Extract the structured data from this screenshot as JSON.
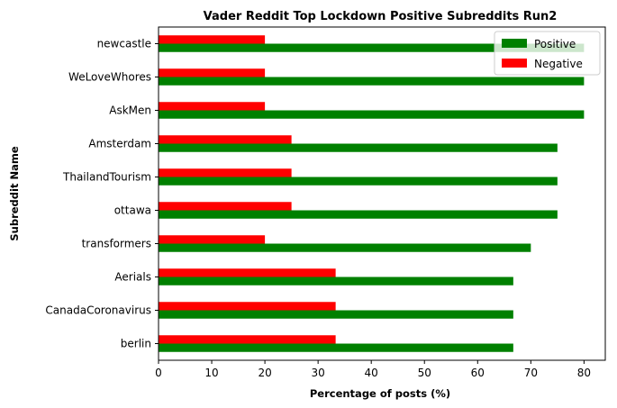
{
  "chart_data": {
    "type": "bar",
    "orientation": "horizontal",
    "title": "Vader Reddit Top Lockdown Positive Subreddits Run2",
    "xlabel": "Percentage of posts (%)",
    "ylabel": "Subreddit Name",
    "xlim": [
      0,
      84
    ],
    "xticks": [
      0,
      10,
      20,
      30,
      40,
      50,
      60,
      70,
      80
    ],
    "grid": false,
    "legend_position": "top-right",
    "categories": [
      "newcastle",
      "WeLoveWhores",
      "AskMen",
      "Amsterdam",
      "ThailandTourism",
      "ottawa",
      "transformers",
      "Aerials",
      "CanadaCoronavirus",
      "berlin"
    ],
    "series": [
      {
        "name": "Positive",
        "color": "#008000",
        "values": [
          80,
          80,
          80,
          75,
          75,
          75,
          70,
          66.7,
          66.7,
          66.7
        ]
      },
      {
        "name": "Negative",
        "color": "#ff0000",
        "values": [
          20,
          20,
          20,
          25,
          25,
          25,
          20,
          33.3,
          33.3,
          33.3
        ]
      }
    ]
  }
}
